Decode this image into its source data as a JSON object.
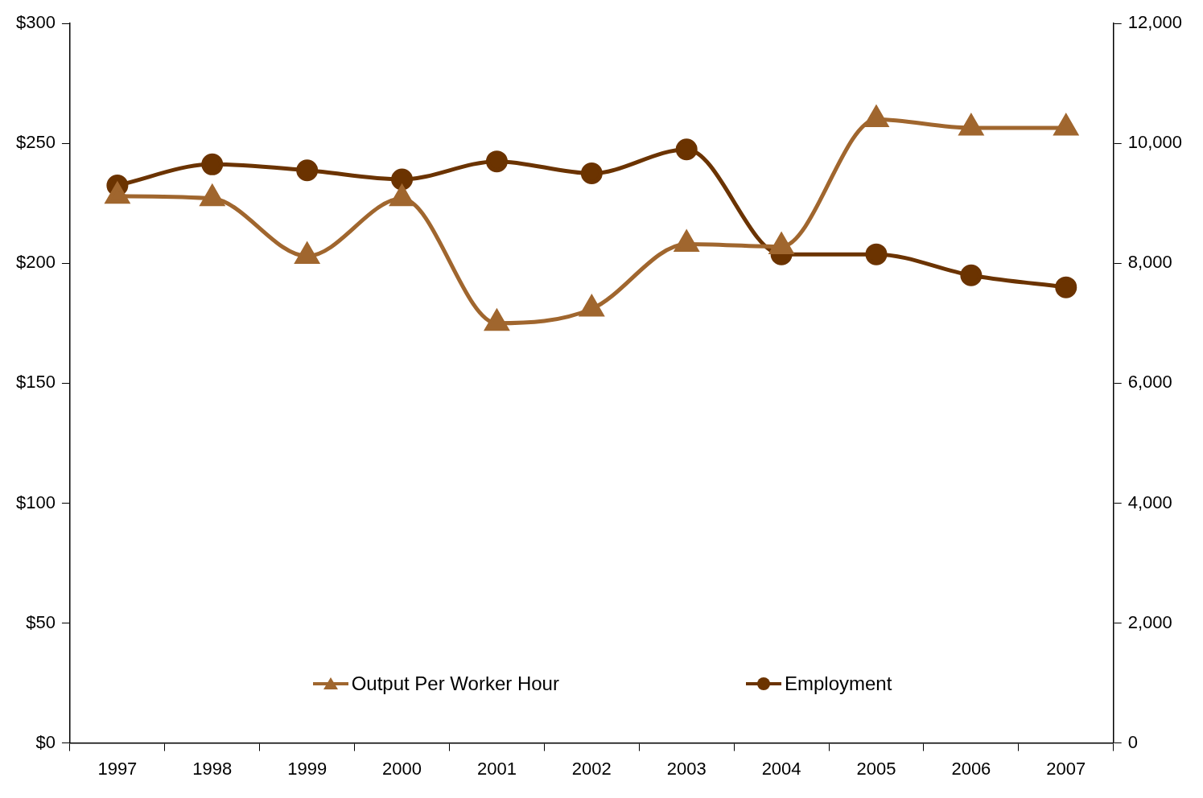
{
  "chart_data": {
    "type": "line",
    "categories": [
      "1997",
      "1998",
      "1999",
      "2000",
      "2001",
      "2002",
      "2003",
      "2004",
      "2005",
      "2006",
      "2007"
    ],
    "series": [
      {
        "name": "Output Per Worker Hour",
        "color": "#a0662e",
        "marker": "triangle",
        "values": [
          228,
          227,
          203,
          227,
          175,
          181,
          208,
          207,
          260,
          256.5,
          256.5
        ]
      },
      {
        "name": "Employment",
        "color": "#6b3300",
        "marker": "circle",
        "axis": "y2",
        "values": [
          9300,
          9650,
          9550,
          9400,
          9700,
          9500,
          9900,
          8150,
          8150,
          7800,
          7600
        ]
      }
    ],
    "ylim": [
      0,
      300
    ],
    "yticks": [
      {
        "value": 0,
        "label": "$0"
      },
      {
        "value": 50,
        "label": "$50"
      },
      {
        "value": 100,
        "label": "$100"
      },
      {
        "value": 150,
        "label": "$150"
      },
      {
        "value": 200,
        "label": "$200"
      },
      {
        "value": 250,
        "label": "$250"
      },
      {
        "value": 300,
        "label": "$300"
      }
    ],
    "y2lim": [
      0,
      12000
    ],
    "y2ticks": [
      {
        "value": 0,
        "label": "0"
      },
      {
        "value": 2000,
        "label": "2,000"
      },
      {
        "value": 4000,
        "label": "4,000"
      },
      {
        "value": 6000,
        "label": "6,000"
      },
      {
        "value": 8000,
        "label": "8,000"
      },
      {
        "value": 10000,
        "label": "10,000"
      },
      {
        "value": 12000,
        "label": "12,000"
      }
    ],
    "grid": false,
    "legend": "bottom",
    "line_style": "solid"
  }
}
